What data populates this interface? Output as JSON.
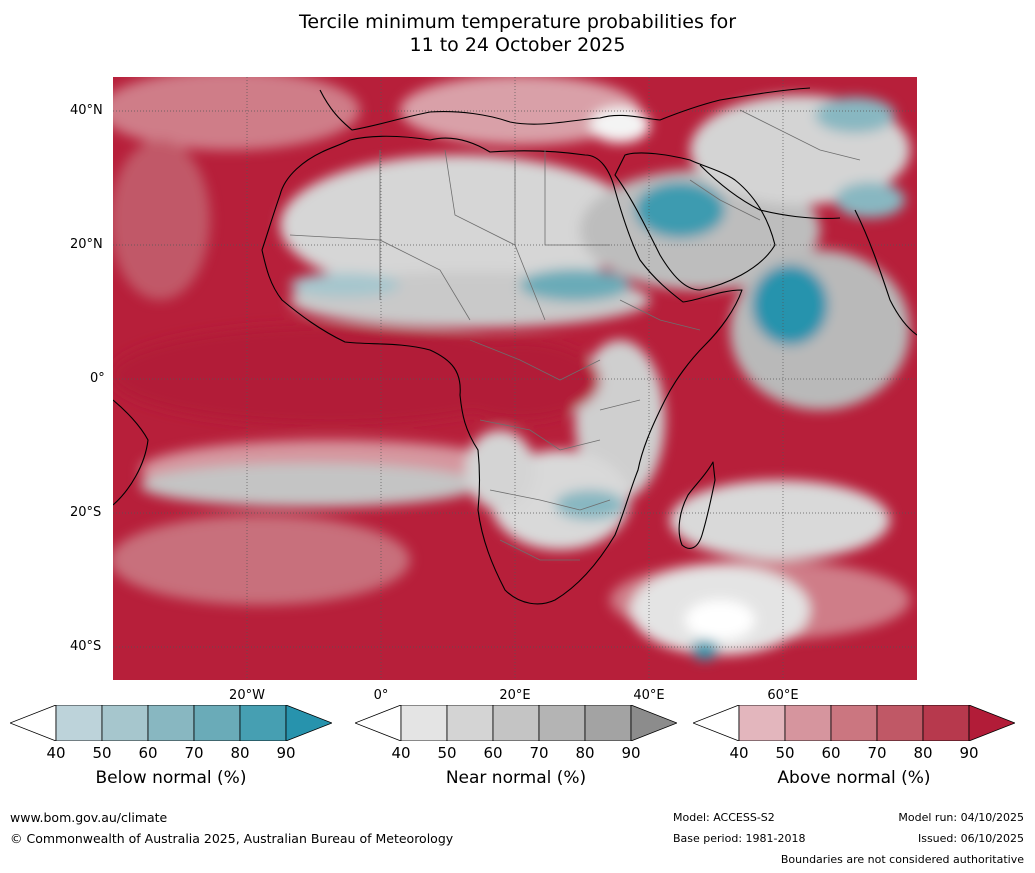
{
  "title": {
    "line1": "Tercile minimum temperature probabilities for",
    "line2": "11 to 24 October 2025"
  },
  "axes": {
    "lat_labels": [
      "40°N",
      "20°N",
      "0°",
      "20°S",
      "40°S"
    ],
    "lon_labels": [
      "20°W",
      "0°",
      "20°E",
      "40°E",
      "60°E"
    ]
  },
  "colorbars": [
    {
      "label": "Below normal (%)",
      "ticks": [
        "40",
        "50",
        "60",
        "70",
        "80",
        "90"
      ],
      "colors": [
        "#ffffff",
        "#bdd3da",
        "#a6c6cd",
        "#88b7c1",
        "#6aabb8",
        "#469fb2",
        "#2793ad"
      ]
    },
    {
      "label": "Near normal (%)",
      "ticks": [
        "40",
        "50",
        "60",
        "70",
        "80",
        "90"
      ],
      "colors": [
        "#ffffff",
        "#e4e4e4",
        "#d4d4d4",
        "#c4c4c4",
        "#b4b4b4",
        "#a3a3a3",
        "#8c8c8c"
      ]
    },
    {
      "label": "Above normal (%)",
      "ticks": [
        "40",
        "50",
        "60",
        "70",
        "80",
        "90"
      ],
      "colors": [
        "#ffffff",
        "#e3b6bd",
        "#d6959e",
        "#cb7680",
        "#c05866",
        "#b7394d",
        "#b21c38"
      ]
    }
  ],
  "footer": {
    "url": "www.bom.gov.au/climate",
    "copyright": "© Commonwealth of Australia 2025, Australian Bureau of Meteorology",
    "model": "Model: ACCESS-S2",
    "base_period": "Base period: 1981-2018",
    "model_run": "Model run: 04/10/2025",
    "issued": "Issued: 06/10/2025",
    "disclaimer": "Boundaries are not considered authoritative"
  }
}
